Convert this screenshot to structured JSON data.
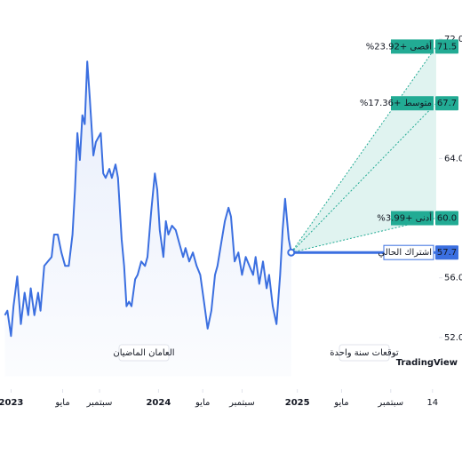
{
  "chart_data": {
    "type": "line",
    "series": [
      {
        "name": "history",
        "color": "#3b6fe0",
        "x": [
          -0.5,
          -0.3,
          0,
          0.2,
          0.5,
          0.8,
          1.1,
          1.4,
          1.6,
          1.9,
          2.2,
          2.4,
          2.7,
          3.0,
          3.3,
          3.5,
          3.8,
          4.1,
          4.4,
          4.7,
          5.0,
          5.2,
          5.4,
          5.6,
          5.8,
          6.0,
          6.2,
          6.4,
          6.7,
          6.9,
          7.1,
          7.3,
          7.5,
          7.7,
          8.0,
          8.2,
          8.5,
          8.7,
          9.0,
          9.2,
          9.4,
          9.6,
          9.8,
          10.1,
          10.3,
          10.6,
          10.9,
          11.1,
          11.4,
          11.7,
          11.9,
          12.1,
          12.4,
          12.6,
          12.8,
          13.1,
          13.4,
          13.7,
          14.0,
          14.2,
          14.5,
          14.8,
          15.1,
          15.4,
          15.7,
          16.0,
          16.3,
          16.6,
          16.8,
          17.1,
          17.4,
          17.7,
          17.9,
          18.2,
          18.5,
          18.8,
          19.1,
          19.4,
          19.7,
          19.9,
          20.2,
          20.5,
          20.8,
          21.0,
          21.3,
          21.6,
          21.9,
          22.1,
          22.3,
          22.6,
          22.8
        ],
        "values": [
          53.5,
          53.8,
          52.1,
          54.1,
          56.1,
          52.9,
          55.0,
          53.5,
          55.3,
          53.5,
          55.0,
          53.8,
          56.8,
          57.1,
          57.4,
          58.9,
          58.9,
          57.7,
          56.8,
          56.8,
          58.9,
          61.9,
          65.7,
          63.9,
          66.9,
          66.3,
          70.5,
          68.1,
          64.2,
          65.1,
          65.4,
          65.7,
          63.0,
          62.7,
          63.3,
          62.7,
          63.6,
          62.7,
          58.6,
          56.8,
          54.1,
          54.4,
          54.1,
          55.9,
          56.2,
          57.1,
          56.8,
          57.4,
          60.4,
          63.0,
          61.9,
          59.2,
          57.4,
          59.8,
          58.9,
          59.5,
          59.2,
          58.3,
          57.4,
          58.0,
          57.1,
          57.7,
          56.8,
          56.2,
          54.4,
          52.6,
          53.8,
          56.2,
          56.8,
          58.3,
          59.8,
          60.7,
          60.1,
          57.1,
          57.7,
          56.2,
          57.4,
          56.8,
          56.2,
          57.4,
          55.6,
          57.1,
          55.3,
          56.2,
          54.1,
          52.9,
          56.2,
          59.2,
          61.3,
          58.6,
          57.7
        ]
      }
    ],
    "forecast": [
      {
        "name": "أقصى +23.92%",
        "value": 71.5,
        "label": "71.5",
        "x": 34.6
      },
      {
        "name": "متوسط +17.36%",
        "value": 67.7,
        "label": "67.7",
        "x": 34.6
      },
      {
        "name": "أدنى +3.99%",
        "value": 60,
        "label": "60.0",
        "x": 34.6
      },
      {
        "name": "اشتراك الحالي",
        "value": 57.7,
        "label": "57.7",
        "x": 34.6
      }
    ],
    "sections": [
      "العامان الماضيان",
      "توقعات سنة واحدة"
    ],
    "logo": "TradingView",
    "xlim": [
      -0.9,
      36.7
    ],
    "xticks": [
      {
        "value": 0,
        "label": "2023"
      },
      {
        "value": 4.2,
        "label": "مايو"
      },
      {
        "value": 7.2,
        "label": "سبتمبر"
      },
      {
        "value": 12,
        "label": "2024"
      },
      {
        "value": 15.6,
        "label": "مايو"
      },
      {
        "value": 18.8,
        "label": "سبتمبر"
      },
      {
        "value": 23.3,
        "label": "2025"
      },
      {
        "value": 26.9,
        "label": "مايو"
      },
      {
        "value": 30.9,
        "label": "سبتمبر"
      },
      {
        "value": 34.3,
        "label": "14"
      }
    ],
    "ylim": [
      49.4,
      72
    ],
    "yticks": [
      {
        "value": 52,
        "label": "52.0"
      },
      {
        "value": 56,
        "label": "56.0"
      },
      {
        "value": 64,
        "label": "64.0"
      },
      {
        "value": 72,
        "label": "72.0"
      }
    ],
    "forecast_color": "#22ab94"
  }
}
